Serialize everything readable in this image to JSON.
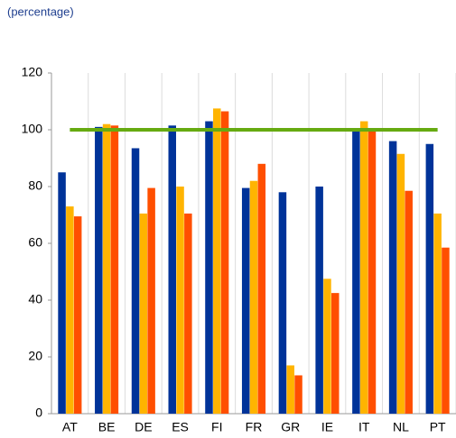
{
  "chart_data": {
    "type": "bar",
    "subtitle": "(percentage)",
    "categories": [
      "AT",
      "BE",
      "DE",
      "ES",
      "FI",
      "FR",
      "GR",
      "IE",
      "IT",
      "NL",
      "PT"
    ],
    "series": [
      {
        "color": "#003399",
        "values": [
          85,
          101,
          93.5,
          101.5,
          103,
          79.5,
          78,
          80,
          100,
          96,
          95
        ]
      },
      {
        "color": "#ffb400",
        "values": [
          73,
          102,
          70.5,
          80,
          107.5,
          82,
          17,
          47.5,
          103,
          91.5,
          70.5
        ]
      },
      {
        "color": "#ff4f00",
        "values": [
          69.5,
          101.5,
          79.5,
          70.5,
          106.5,
          88,
          13.5,
          42.5,
          100,
          78.5,
          58.5
        ]
      }
    ],
    "reference_line": {
      "value": 100,
      "color": "#66aa11"
    },
    "ylim": [
      0,
      120
    ],
    "yticks": [
      0,
      20,
      40,
      60,
      80,
      100,
      120
    ],
    "grid": true
  }
}
